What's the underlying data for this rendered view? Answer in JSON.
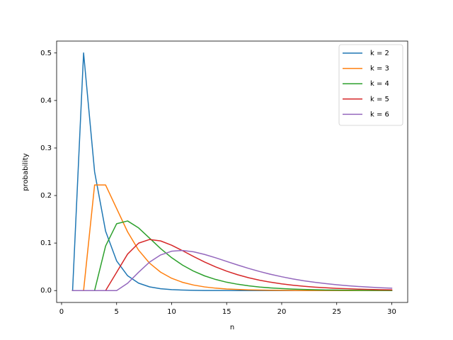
{
  "chart_data": {
    "type": "line",
    "xlabel": "n",
    "ylabel": "probability",
    "x": [
      1,
      2,
      3,
      4,
      5,
      6,
      7,
      8,
      9,
      10,
      11,
      12,
      13,
      14,
      15,
      16,
      17,
      18,
      19,
      20,
      21,
      22,
      23,
      24,
      25,
      26,
      27,
      28,
      29,
      30
    ],
    "series": [
      {
        "name": "k = 2",
        "color": "#1f77b4",
        "values": [
          0,
          0.5,
          0.25,
          0.125,
          0.0625,
          0.03125,
          0.0156,
          0.0078,
          0.0039,
          0.002,
          0.001,
          0.0005,
          0.0002,
          0.0001,
          0.0001,
          0,
          0,
          0,
          0,
          0,
          0,
          0,
          0,
          0,
          0,
          0,
          0,
          0,
          0,
          0
        ]
      },
      {
        "name": "k = 3",
        "color": "#ff7f0e",
        "values": [
          0,
          0,
          0.2222,
          0.2222,
          0.1728,
          0.1235,
          0.085,
          0.0576,
          0.0387,
          0.0259,
          0.0173,
          0.0116,
          0.0077,
          0.0051,
          0.0034,
          0.0023,
          0.0015,
          0.001,
          0.0007,
          0.0005,
          0.0003,
          0.0002,
          0.0001,
          0.0001,
          0.0001,
          0,
          0,
          0,
          0,
          0
        ]
      },
      {
        "name": "k = 4",
        "color": "#2ca02c",
        "values": [
          0,
          0,
          0,
          0.0938,
          0.1406,
          0.1465,
          0.1318,
          0.1102,
          0.0884,
          0.0692,
          0.0534,
          0.0408,
          0.0309,
          0.0234,
          0.0176,
          0.0133,
          0.01,
          0.0075,
          0.0056,
          0.0042,
          0.0032,
          0.0024,
          0.0018,
          0.0013,
          0.001,
          0.0008,
          0.0006,
          0.0004,
          0.0003,
          0.0002
        ]
      },
      {
        "name": "k = 5",
        "color": "#d62728",
        "values": [
          0,
          0,
          0,
          0,
          0.0384,
          0.0768,
          0.0998,
          0.1075,
          0.1045,
          0.0955,
          0.0838,
          0.0716,
          0.0601,
          0.0498,
          0.0409,
          0.0333,
          0.027,
          0.0218,
          0.0176,
          0.0142,
          0.0114,
          0.0091,
          0.0073,
          0.0059,
          0.0047,
          0.0038,
          0.003,
          0.0024,
          0.0019,
          0.0015
        ]
      },
      {
        "name": "k = 6",
        "color": "#9467bd",
        "values": [
          0,
          0,
          0,
          0,
          0,
          0.0154,
          0.0386,
          0.06,
          0.075,
          0.0828,
          0.0844,
          0.0816,
          0.076,
          0.069,
          0.0614,
          0.0538,
          0.0466,
          0.0401,
          0.0342,
          0.0291,
          0.0246,
          0.0207,
          0.0174,
          0.0147,
          0.0123,
          0.0103,
          0.0086,
          0.0072,
          0.006,
          0.005
        ]
      }
    ],
    "xlim": [
      -0.45,
      31.45
    ],
    "ylim": [
      -0.025,
      0.525
    ],
    "xticks": [
      0,
      5,
      10,
      15,
      20,
      25,
      30
    ],
    "yticks": [
      {
        "value": 0,
        "label": "0.0"
      },
      0.1,
      0.2,
      0.3,
      0.4,
      0.5
    ],
    "grid": false,
    "legend": "upper right"
  }
}
